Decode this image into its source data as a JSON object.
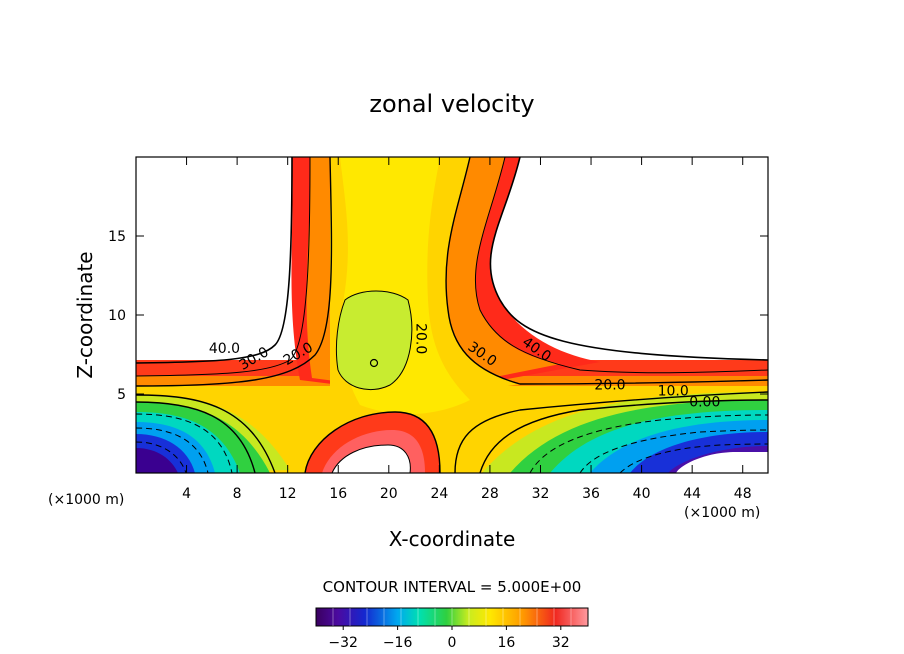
{
  "chart_data": {
    "type": "heatmap",
    "title": "zonal velocity",
    "xlabel": "X-coordinate",
    "ylabel": "Z-coordinate",
    "x_unit_left": "(×1000 m)",
    "x_unit_right": "(×1000 m)",
    "xlim": [
      0,
      50
    ],
    "ylim": [
      0,
      20
    ],
    "x_ticks": [
      4,
      8,
      12,
      16,
      20,
      24,
      28,
      32,
      36,
      40,
      44,
      48
    ],
    "y_ticks": [
      5,
      10,
      15
    ],
    "contour_interval_text": "CONTOUR INTERVAL = 5.000E+00",
    "contour_labels": [
      {
        "text": "40.0",
        "x": 7.0,
        "y": 7.6
      },
      {
        "text": "30.0",
        "x": 9.5,
        "y": 7.0
      },
      {
        "text": "20.0",
        "x": 13.0,
        "y": 7.3
      },
      {
        "text": "20.0",
        "x": 22.2,
        "y": 8.5
      },
      {
        "text": "30.0",
        "x": 27.2,
        "y": 7.3
      },
      {
        "text": "40.0",
        "x": 31.5,
        "y": 7.6
      },
      {
        "text": "20.0",
        "x": 37.5,
        "y": 5.3
      },
      {
        "text": "10.0",
        "x": 42.5,
        "y": 4.9
      },
      {
        "text": "0.00",
        "x": 45.0,
        "y": 4.2
      }
    ],
    "colorbar": {
      "min": -40,
      "max": 40,
      "tick_labels": [
        "-32",
        "-16",
        "0",
        "16",
        "32"
      ],
      "tick_values": [
        -32,
        -16,
        0,
        16,
        32
      ]
    }
  }
}
